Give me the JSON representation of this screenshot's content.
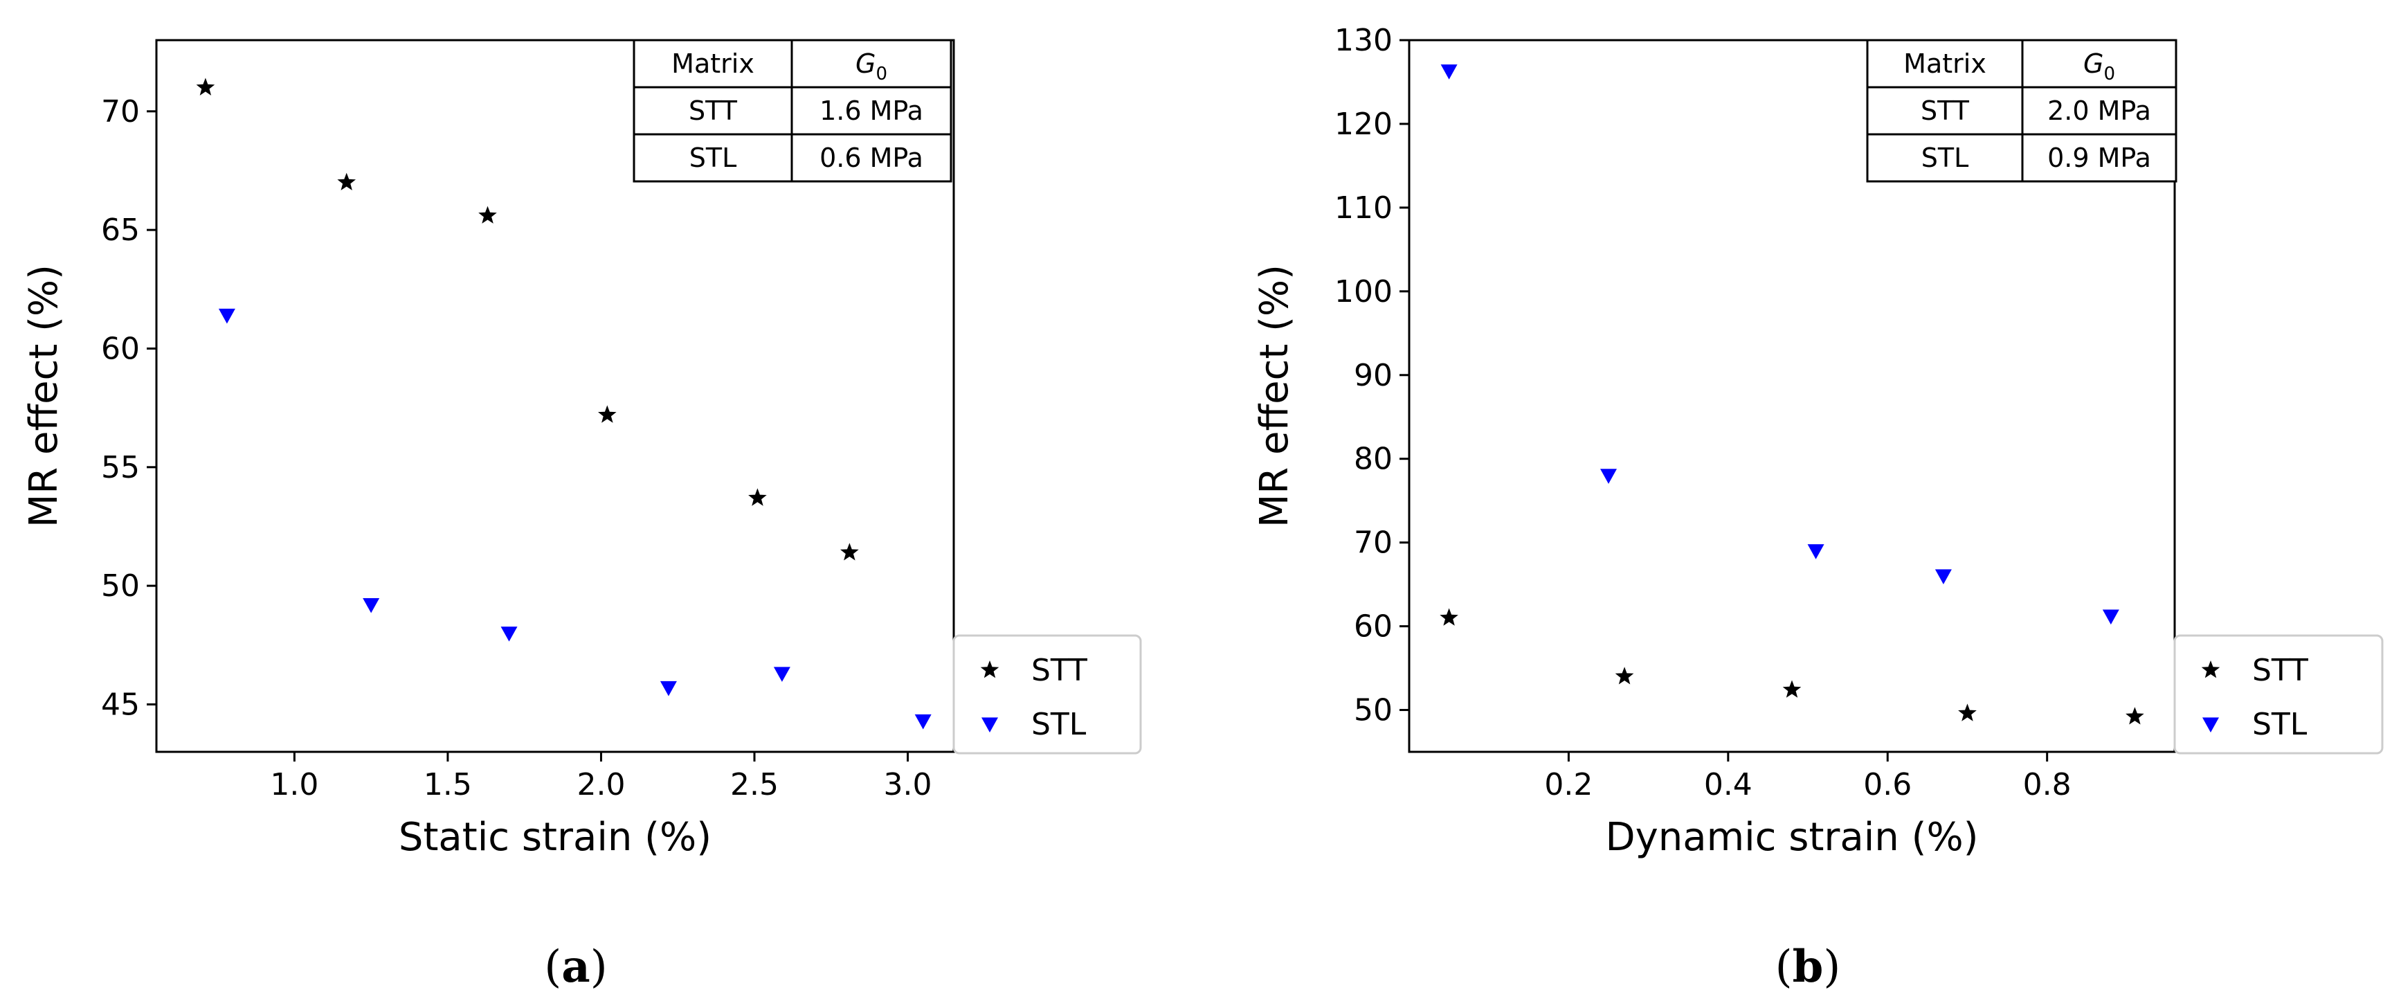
{
  "chart_data": [
    {
      "id": "a",
      "type": "scatter",
      "caption": "(a)",
      "xlabel": "Static strain (%)",
      "ylabel": "MR effect (%)",
      "xlim": [
        0.55,
        3.15
      ],
      "ylim": [
        43,
        73
      ],
      "xticks": [
        1.0,
        1.5,
        2.0,
        2.5,
        3.0
      ],
      "xtick_labels": [
        "1.0",
        "1.5",
        "2.0",
        "2.5",
        "3.0"
      ],
      "yticks": [
        45,
        50,
        55,
        60,
        65,
        70
      ],
      "ytick_labels": [
        "45",
        "50",
        "55",
        "60",
        "65",
        "70"
      ],
      "grid": false,
      "legend_position": "bottom-right-outside",
      "series": [
        {
          "name": "STT",
          "marker": "star",
          "color": "#000000",
          "x": [
            0.71,
            1.17,
            1.63,
            2.02,
            2.51,
            2.81
          ],
          "y": [
            71.0,
            67.0,
            65.6,
            57.2,
            53.7,
            51.4
          ]
        },
        {
          "name": "STL",
          "marker": "triangle-down",
          "color": "#0000ff",
          "x": [
            0.78,
            1.25,
            1.7,
            2.22,
            2.59,
            3.05
          ],
          "y": [
            61.4,
            49.2,
            48.0,
            45.7,
            46.3,
            44.3
          ]
        }
      ],
      "table": {
        "headers": [
          "Matrix",
          "G",
          "0"
        ],
        "rows": [
          [
            "STT",
            "1.6 MPa"
          ],
          [
            "STL",
            "0.6 MPa"
          ]
        ]
      }
    },
    {
      "id": "b",
      "type": "scatter",
      "caption": "(b)",
      "xlabel": "Dynamic strain (%)",
      "ylabel": "MR effect (%)",
      "xlim": [
        0.0,
        0.96
      ],
      "ylim": [
        45,
        130
      ],
      "xticks": [
        0.2,
        0.4,
        0.6,
        0.8
      ],
      "xtick_labels": [
        "0.2",
        "0.4",
        "0.6",
        "0.8"
      ],
      "yticks": [
        50,
        60,
        70,
        80,
        90,
        100,
        110,
        120,
        130
      ],
      "ytick_labels": [
        "50",
        "60",
        "70",
        "80",
        "90",
        "100",
        "110",
        "120",
        "130"
      ],
      "grid": false,
      "legend_position": "bottom-right-outside",
      "series": [
        {
          "name": "STT",
          "marker": "star",
          "color": "#000000",
          "x": [
            0.05,
            0.27,
            0.48,
            0.7,
            0.91
          ],
          "y": [
            61.0,
            54.0,
            52.4,
            49.6,
            49.2
          ]
        },
        {
          "name": "STL",
          "marker": "triangle-down",
          "color": "#0000ff",
          "x": [
            0.05,
            0.25,
            0.51,
            0.67,
            0.88
          ],
          "y": [
            126.3,
            78.0,
            69.0,
            66.0,
            61.2
          ]
        }
      ],
      "table": {
        "headers": [
          "Matrix",
          "G",
          "0"
        ],
        "rows": [
          [
            "STT",
            "2.0 MPa"
          ],
          [
            "STL",
            "0.9 MPa"
          ]
        ]
      }
    }
  ]
}
